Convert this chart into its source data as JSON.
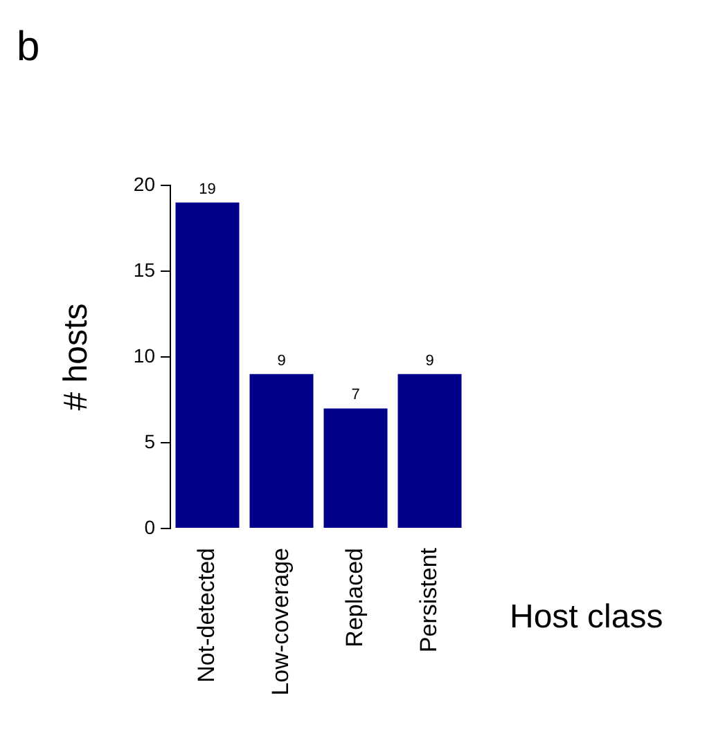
{
  "chart_data": {
    "type": "bar",
    "title": "b",
    "xlabel": "Host class",
    "ylabel": "# hosts",
    "categories": [
      "Not-detected",
      "Low-coverage",
      "Replaced",
      "Persistent"
    ],
    "values": [
      19,
      9,
      7,
      9
    ],
    "color": "#00008b",
    "data_labels": true,
    "ylim": [
      0,
      20
    ],
    "yticks": [
      0,
      5,
      10,
      15,
      20
    ],
    "grid": false,
    "legend": false
  }
}
